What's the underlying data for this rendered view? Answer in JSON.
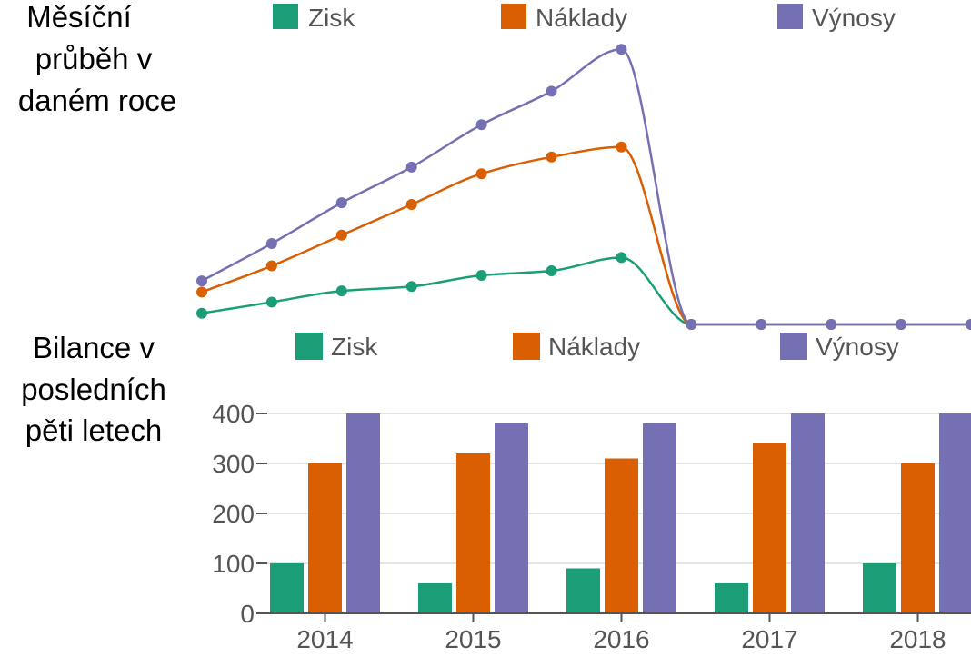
{
  "chart_data": [
    {
      "type": "line",
      "title": [
        "Měsíční",
        "průběh v",
        "daném roce"
      ],
      "x": [
        1,
        2,
        3,
        4,
        5,
        6,
        7,
        8,
        9,
        10,
        11,
        12
      ],
      "series": [
        {
          "name": "Zisk",
          "color": "#1b9e77",
          "values": [
            20,
            40,
            60,
            68,
            88,
            96,
            120,
            0,
            0,
            0,
            0,
            0
          ]
        },
        {
          "name": "Náklady",
          "color": "#d95f02",
          "values": [
            58,
            105,
            160,
            215,
            270,
            300,
            318,
            0,
            0,
            0,
            0,
            0
          ]
        },
        {
          "name": "Výnosy",
          "color": "#7570b3",
          "values": [
            78,
            145,
            218,
            282,
            358,
            418,
            493,
            0,
            0,
            0,
            0,
            0
          ]
        }
      ],
      "ylim": [
        0,
        500
      ],
      "grid": false,
      "legend": "top"
    },
    {
      "type": "bar",
      "title": [
        "Bilance v",
        "posledních",
        "pěti letech"
      ],
      "categories": [
        "2014",
        "2015",
        "2016",
        "2017",
        "2018"
      ],
      "series": [
        {
          "name": "Zisk",
          "color": "#1b9e77",
          "values": [
            100,
            60,
            90,
            60,
            100
          ]
        },
        {
          "name": "Náklady",
          "color": "#d95f02",
          "values": [
            300,
            320,
            310,
            340,
            300
          ]
        },
        {
          "name": "Výnosy",
          "color": "#7570b3",
          "values": [
            400,
            380,
            380,
            400,
            400
          ]
        }
      ],
      "yticks": [
        0,
        100,
        200,
        300,
        400
      ],
      "ylim": [
        0,
        400
      ],
      "grid": true,
      "legend": "top"
    }
  ]
}
